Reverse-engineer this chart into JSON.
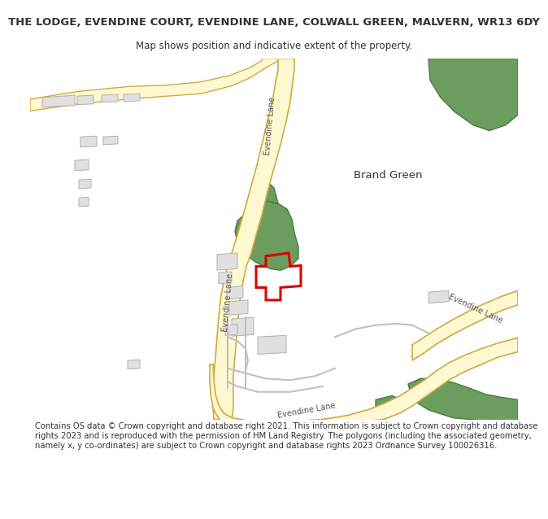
{
  "title_line1": "THE LODGE, EVENDINE COURT, EVENDINE LANE, COLWALL GREEN, MALVERN, WR13 6DY",
  "title_line2": "Map shows position and indicative extent of the property.",
  "footer": "Contains OS data © Crown copyright and database right 2021. This information is subject to Crown copyright and database rights 2023 and is reproduced with the permission of HM Land Registry. The polygons (including the associated geometry, namely x, y co-ordinates) are subject to Crown copyright and database rights 2023 Ordnance Survey 100026316.",
  "background_color": "#ffffff",
  "map_bg": "#f5f5f5",
  "road_fill": "#fef9d0",
  "road_edge": "#d4a843",
  "green_fill": "#6b9e5e",
  "green_edge": "#4a7a3e",
  "building_fill": "#e0e0e0",
  "building_edge": "#b0b0b0",
  "track_color": "#c0c0c0",
  "plot_edge": "#dd0000",
  "plot_lw": 2.2,
  "text_color": "#333333",
  "label_color": "#555555",
  "title_fontsize": 9.5,
  "subtitle_fontsize": 8.5,
  "footer_fontsize": 7.2,
  "brand_green_label": "Brand Green",
  "evendine_lane": "Evendine Lane"
}
